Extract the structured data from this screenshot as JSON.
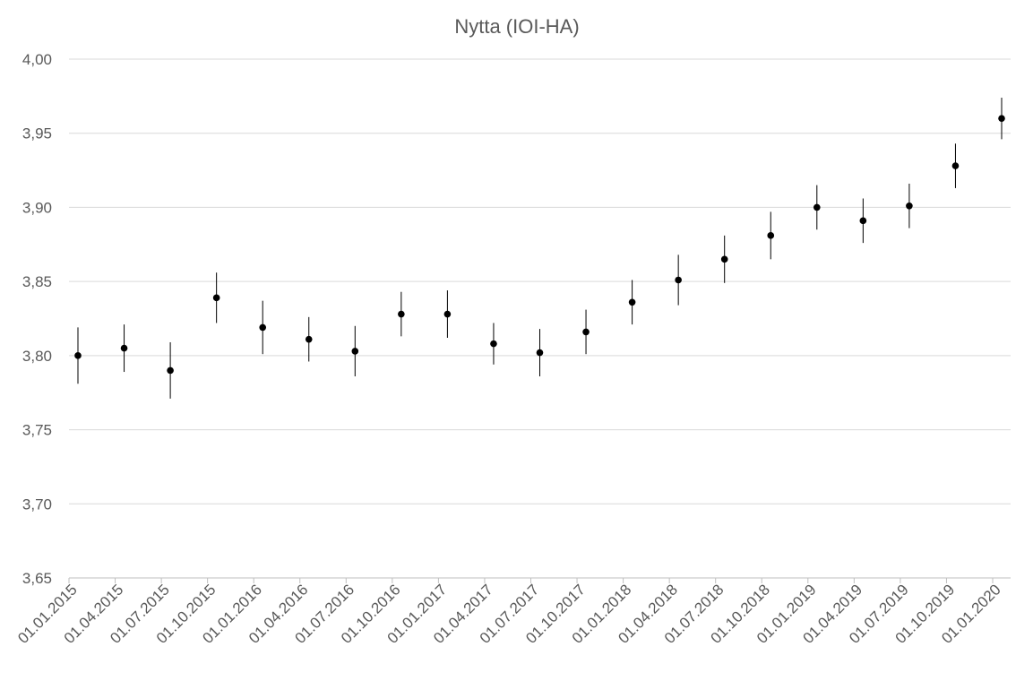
{
  "chart_data": {
    "type": "errorbar",
    "title": "Nytta (IOI-HA)",
    "categories": [
      "01.01.2015",
      "01.04.2015",
      "01.07.2015",
      "01.10.2015",
      "01.01.2016",
      "01.04.2016",
      "01.07.2016",
      "01.10.2016",
      "01.01.2017",
      "01.04.2017",
      "01.07.2017",
      "01.10.2017",
      "01.01.2018",
      "01.04.2018",
      "01.07.2018",
      "01.10.2018",
      "01.01.2019",
      "01.04.2019",
      "01.07.2019",
      "01.10.2019",
      "01.01.2020"
    ],
    "values": [
      3.8,
      3.805,
      3.79,
      3.839,
      3.819,
      3.811,
      3.803,
      3.828,
      3.828,
      3.808,
      3.802,
      3.816,
      3.836,
      3.851,
      3.865,
      3.881,
      3.9,
      3.891,
      3.901,
      3.928,
      3.96
    ],
    "errors": [
      0.019,
      0.016,
      0.019,
      0.017,
      0.018,
      0.015,
      0.017,
      0.015,
      0.016,
      0.014,
      0.016,
      0.015,
      0.015,
      0.017,
      0.016,
      0.016,
      0.015,
      0.015,
      0.015,
      0.015,
      0.014
    ],
    "color": "#000000",
    "ylim": [
      3.65,
      4.0
    ],
    "yticks": [
      {
        "value": 3.65,
        "label": "3,65"
      },
      {
        "value": 3.7,
        "label": "3,70"
      },
      {
        "value": 3.75,
        "label": "3,75"
      },
      {
        "value": 3.8,
        "label": "3,80"
      },
      {
        "value": 3.85,
        "label": "3,85"
      },
      {
        "value": 3.9,
        "label": "3,90"
      },
      {
        "value": 3.95,
        "label": "3,95"
      },
      {
        "value": 4.0,
        "label": "4,00"
      }
    ],
    "grid": true
  }
}
